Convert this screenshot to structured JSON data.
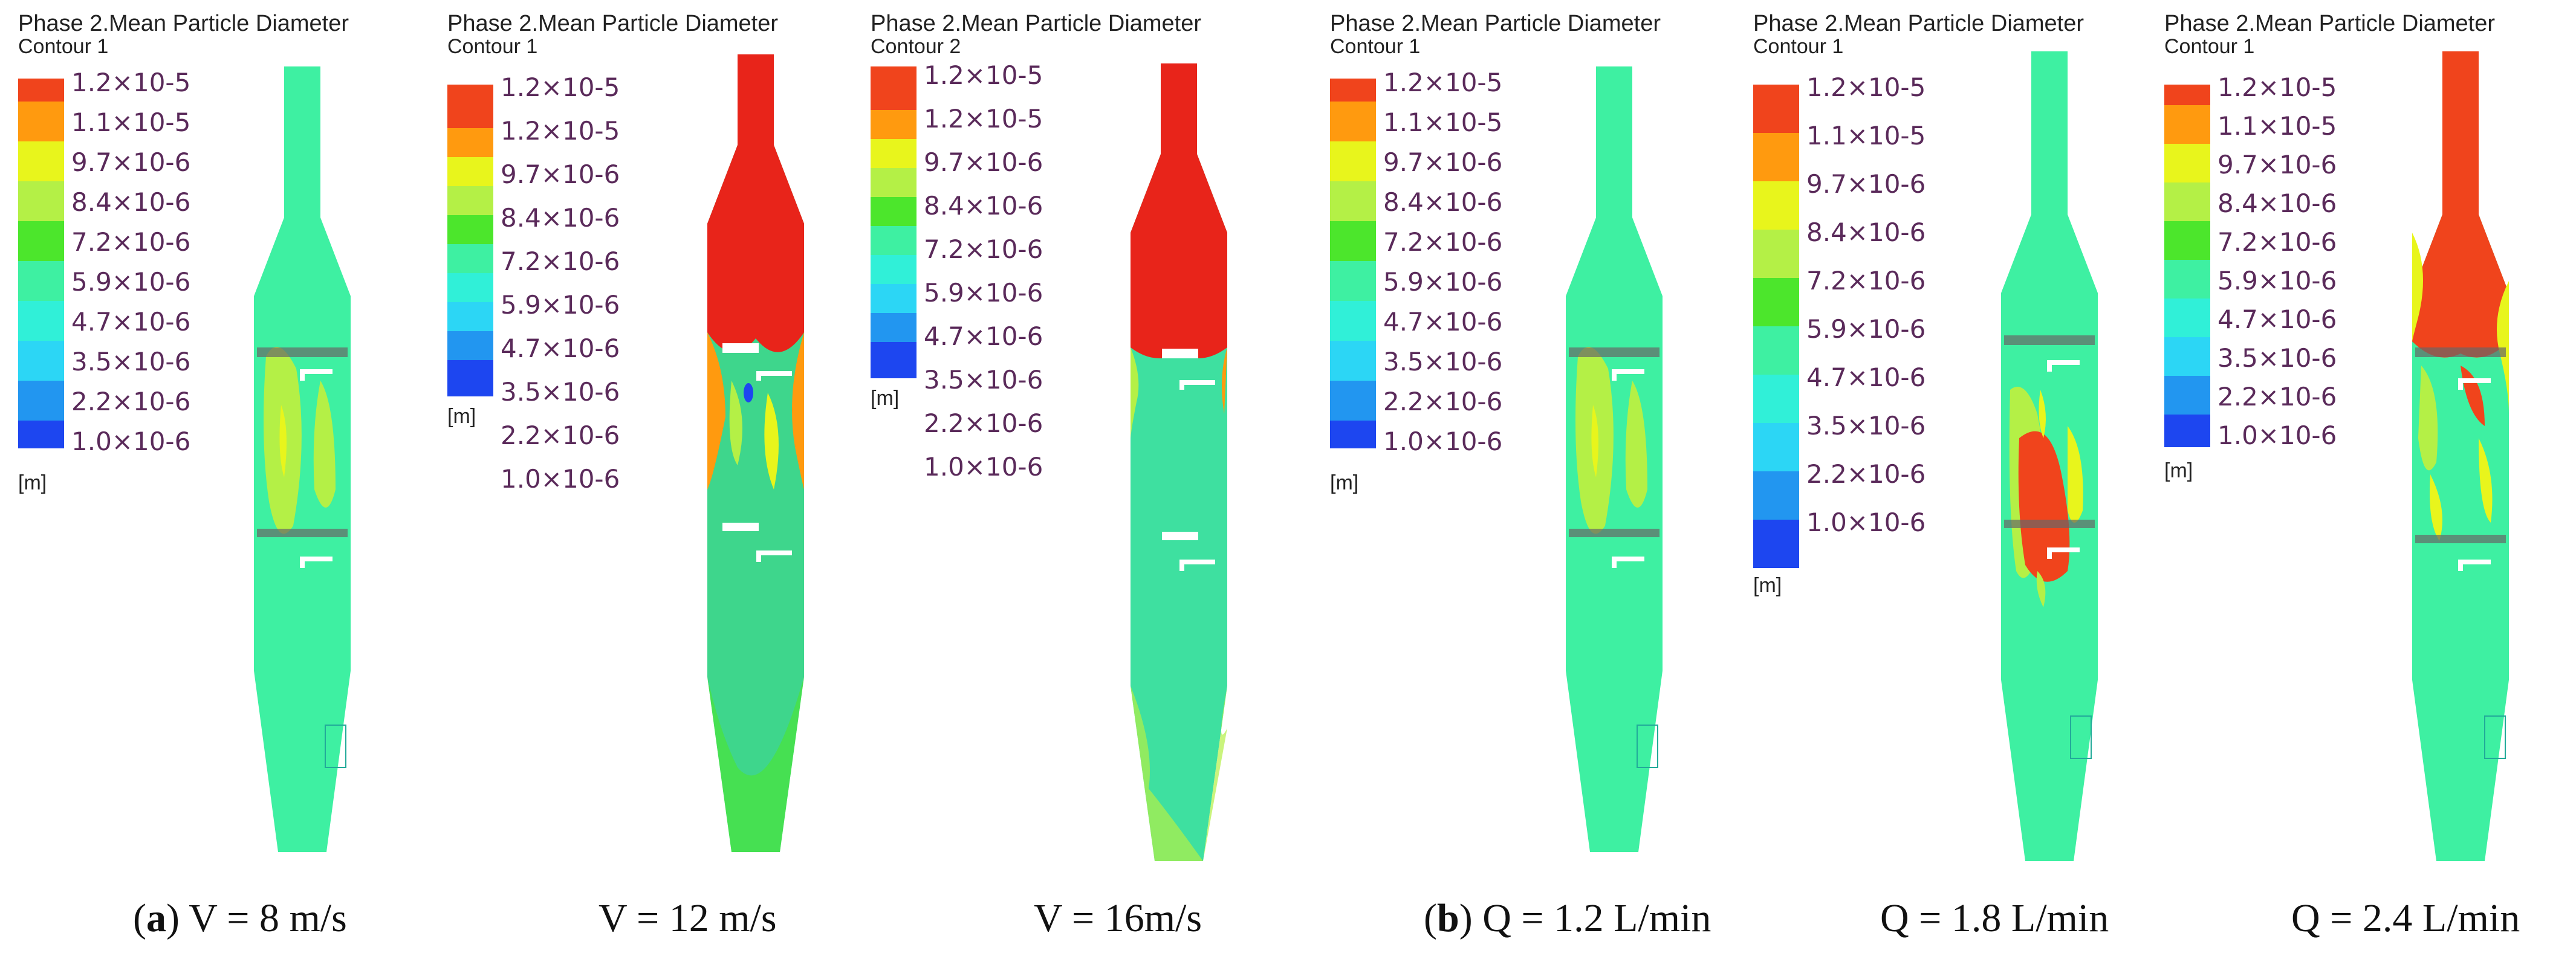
{
  "panels": [
    {
      "title": "Phase 2.Mean Particle Diameter",
      "subtitle": "Contour 1",
      "labels": [
        "1.2×10-5",
        "1.1×10-5",
        "9.7×10-6",
        "8.4×10-6",
        "7.2×10-6",
        "5.9×10-6",
        "4.7×10-6",
        "3.5×10-6",
        "2.2×10-6",
        "1.0×10-6"
      ],
      "unit": "[m]"
    },
    {
      "title": "Phase 2.Mean Particle Diameter",
      "subtitle": "Contour 1",
      "labels": [
        "1.2×10-5",
        "1.2×10-5",
        "9.7×10-6",
        "8.4×10-6",
        "7.2×10-6",
        "5.9×10-6",
        "4.7×10-6",
        "3.5×10-6",
        "2.2×10-6",
        "1.0×10-6"
      ],
      "unit": "[m]"
    },
    {
      "title": "Phase 2.Mean Particle Diameter",
      "subtitle": "Contour 2",
      "labels": [
        "1.2×10-5",
        "1.2×10-5",
        "9.7×10-6",
        "8.4×10-6",
        "7.2×10-6",
        "5.9×10-6",
        "4.7×10-6",
        "3.5×10-6",
        "2.2×10-6",
        "1.0×10-6"
      ],
      "unit": "[m]"
    },
    {
      "title": "Phase 2.Mean Particle Diameter",
      "subtitle": "Contour 1",
      "labels": [
        "1.2×10-5",
        "1.1×10-5",
        "9.7×10-6",
        "8.4×10-6",
        "7.2×10-6",
        "5.9×10-6",
        "4.7×10-6",
        "3.5×10-6",
        "2.2×10-6",
        "1.0×10-6"
      ],
      "unit": "[m]"
    },
    {
      "title": "Phase 2.Mean Particle Diameter",
      "subtitle": "Contour 1",
      "labels": [
        "1.2×10-5",
        "1.1×10-5",
        "9.7×10-6",
        "8.4×10-6",
        "7.2×10-6",
        "5.9×10-6",
        "4.7×10-6",
        "3.5×10-6",
        "2.2×10-6",
        "1.0×10-6"
      ],
      "unit": "[m]"
    },
    {
      "title": "Phase 2.Mean Particle Diameter",
      "subtitle": "Contour 1",
      "labels": [
        "1.2×10-5",
        "1.1×10-5",
        "9.7×10-6",
        "8.4×10-6",
        "7.2×10-6",
        "5.9×10-6",
        "4.7×10-6",
        "3.5×10-6",
        "2.2×10-6",
        "1.0×10-6"
      ],
      "unit": "[m]"
    }
  ],
  "legend_colors": [
    "#f0441c",
    "#ff9a0f",
    "#e8f51c",
    "#b4f046",
    "#4ce62c",
    "#3ef0a2",
    "#30f0d8",
    "#2cd6f5",
    "#2296f0",
    "#1d46f0"
  ],
  "captions": {
    "a_letter": "a",
    "a_text": " V = 8 m/s",
    "v12": "V = 12 m/s",
    "v16": "V = 16m/s",
    "b_letter": "b",
    "b_text": " Q = 1.2 L/min",
    "q18": "Q = 1.8 L/min",
    "q24": "Q = 2.4 L/min"
  }
}
